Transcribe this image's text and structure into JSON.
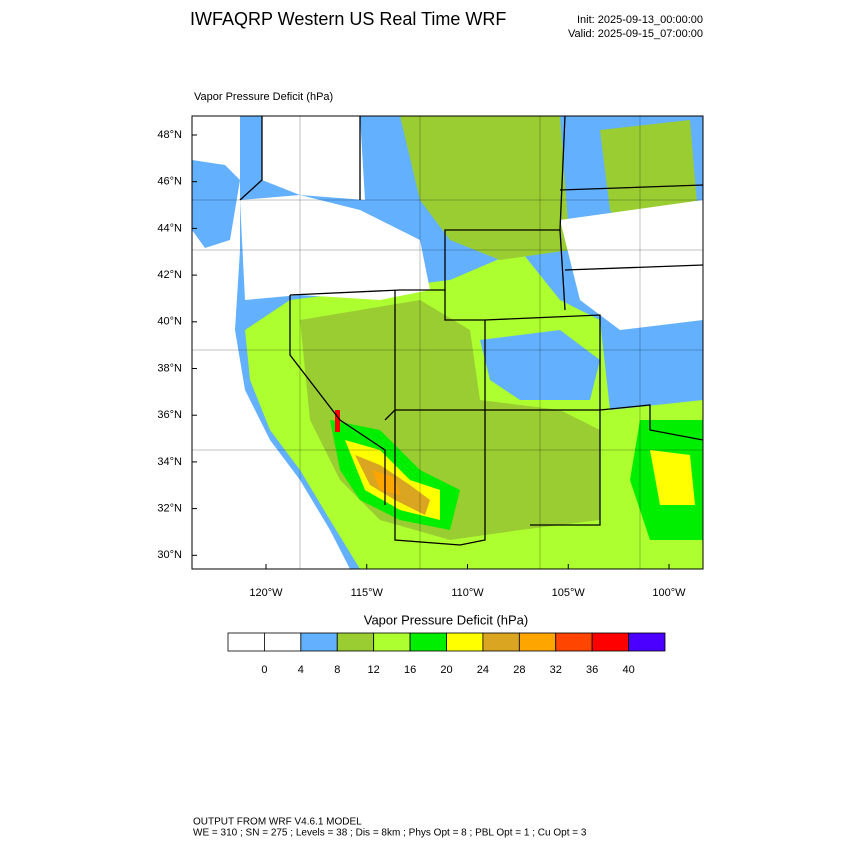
{
  "header": {
    "title": "IWFAQRP Western US Real Time WRF",
    "init": "Init: 2025-09-13_00:00:00",
    "valid": "Valid: 2025-09-15_07:00:00"
  },
  "map": {
    "field_label": "Vapor Pressure Deficit   (hPa)",
    "lat_labels": [
      "48°N",
      "46°N",
      "44°N",
      "42°N",
      "40°N",
      "38°N",
      "36°N",
      "34°N",
      "32°N",
      "30°N"
    ],
    "lon_labels": [
      "120°W",
      "115°W",
      "110°W",
      "105°W",
      "100°W"
    ]
  },
  "colorbar": {
    "title": "Vapor Pressure Deficit  (hPa)",
    "levels": [
      0,
      4,
      8,
      12,
      16,
      20,
      24,
      28,
      32,
      36,
      40
    ],
    "colors": [
      "#ffffff",
      "#ffffff",
      "#63b0ff",
      "#9acd32",
      "#adff2f",
      "#00ee00",
      "#ffff00",
      "#daa520",
      "#ffa500",
      "#ff4500",
      "#ff0000",
      "#4b00ff"
    ]
  },
  "footer": {
    "line1": "OUTPUT FROM WRF V4.6.1 MODEL",
    "line2": "WE = 310 ; SN = 275 ; Levels = 38 ; Dis = 8km ; Phys Opt = 8 ; PBL Opt = 1 ; Cu Opt = 3"
  }
}
